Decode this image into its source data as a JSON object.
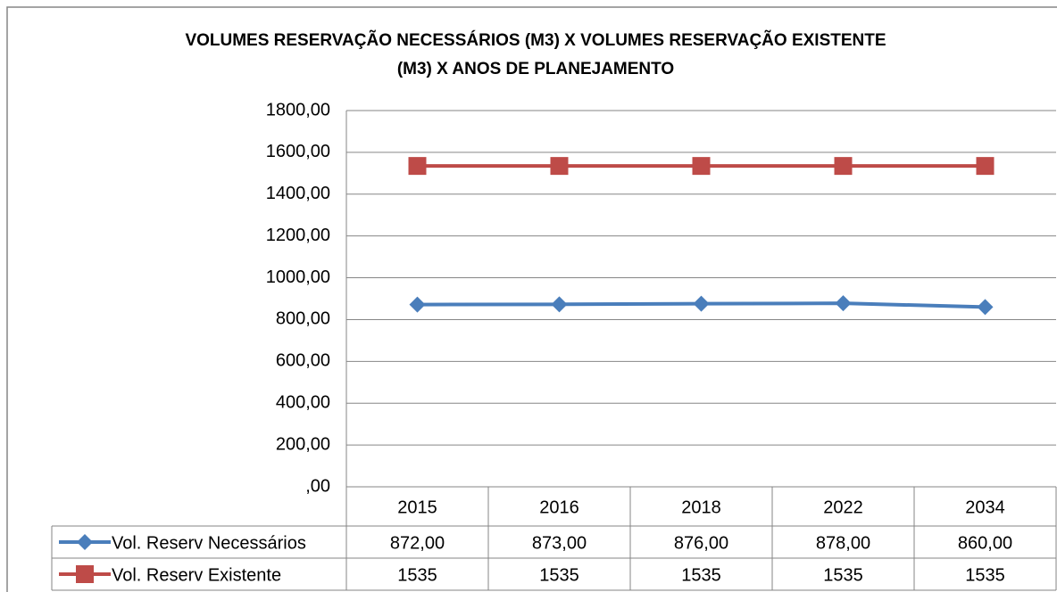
{
  "chart_data": {
    "type": "line",
    "title": [
      "VOLUMES RESERVAÇÃO NECESSÁRIOS (M3) X VOLUMES RESERVAÇÃO EXISTENTE",
      "(M3)  X ANOS DE PLANEJAMENTO"
    ],
    "categories": [
      "2015",
      "2016",
      "2018",
      "2022",
      "2034"
    ],
    "series": [
      {
        "name": "Vol. Reserv Necessários",
        "color": "#4a7ebb",
        "marker": "diamond",
        "values": [
          872,
          873,
          876,
          878,
          860
        ],
        "value_labels": [
          "872,00",
          "873,00",
          "876,00",
          "878,00",
          "860,00"
        ]
      },
      {
        "name": "Vol. Reserv Existente",
        "color": "#be4b48",
        "marker": "square",
        "values": [
          1535,
          1535,
          1535,
          1535,
          1535
        ]
      }
    ],
    "ylim": [
      0,
      1800
    ],
    "yticks": [
      {
        "value": 0,
        "label": ",00"
      },
      {
        "value": 200,
        "label": "200,00"
      },
      {
        "value": 400,
        "label": "400,00"
      },
      {
        "value": 600,
        "label": "600,00"
      },
      {
        "value": 800,
        "label": "800,00"
      },
      {
        "value": 1000,
        "label": "1000,00"
      },
      {
        "value": 1200,
        "label": "1200,00"
      },
      {
        "value": 1400,
        "label": "1400,00"
      },
      {
        "value": 1600,
        "label": "1600,00"
      },
      {
        "value": 1800,
        "label": "1800,00"
      }
    ],
    "grid": true,
    "data_table": true
  }
}
